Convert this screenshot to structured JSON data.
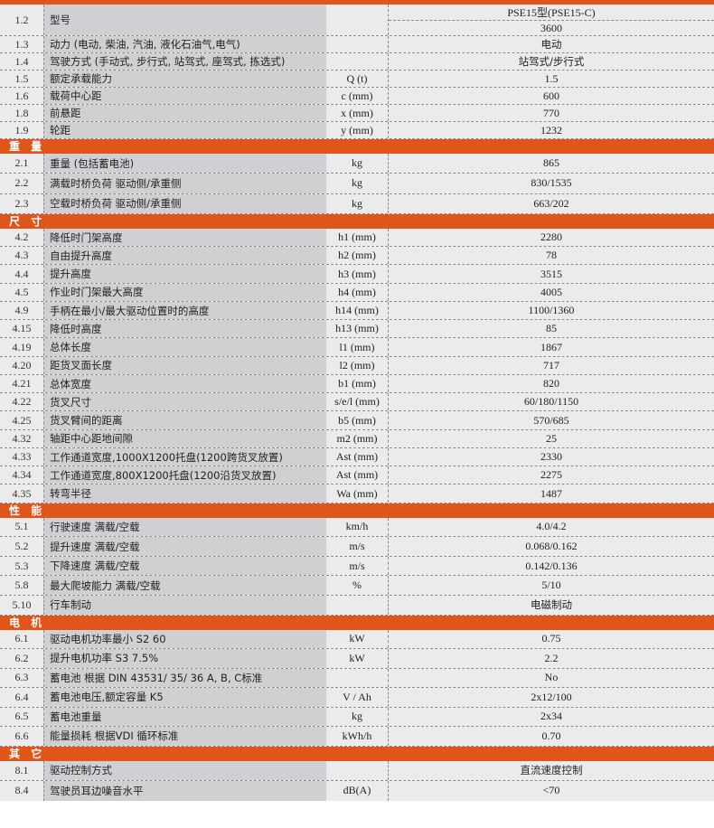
{
  "colors": {
    "accent": "#e0561a",
    "label_bg": "#d0d0d2",
    "cell_bg": "#ebebeb"
  },
  "sections": [
    {
      "title": "",
      "row_h": 19,
      "rows": [
        {
          "no": "1.2",
          "name": "型号",
          "unit": "",
          "values": [
            "PSE15型(PSE15-C)",
            "3600"
          ]
        },
        {
          "no": "1.3",
          "name": "动力 (电动, 柴油, 汽油, 液化石油气,电气)",
          "unit": "",
          "value": "电动"
        },
        {
          "no": "1.4",
          "name": "驾驶方式 (手动式, 步行式, 站驾式, 座驾式, 拣选式)",
          "unit": "",
          "value": "站驾式/步行式"
        },
        {
          "no": "1.5",
          "name": "额定承载能力",
          "unit": "Q (t)",
          "value": "1.5"
        },
        {
          "no": "1.6",
          "name": "载荷中心距",
          "unit": "c (mm)",
          "value": "600"
        },
        {
          "no": "1.8",
          "name": "前悬距",
          "unit": "x (mm)",
          "value": "770"
        },
        {
          "no": "1.9",
          "name": "轮距",
          "unit": "y (mm)",
          "value": "1232"
        }
      ]
    },
    {
      "title": "重 量",
      "row_h": 22.3,
      "rows": [
        {
          "no": "2.1",
          "name": "重量 (包括蓄电池)",
          "unit": "kg",
          "value": "865"
        },
        {
          "no": "2.2",
          "name": "满载时桥负荷  驱动侧/承重侧",
          "unit": "kg",
          "value": "830/1535"
        },
        {
          "no": "2.3",
          "name": "空载时桥负荷  驱动侧/承重侧",
          "unit": "kg",
          "value": "663/202"
        }
      ]
    },
    {
      "title": "尺 寸",
      "row_h": 20.25,
      "rows": [
        {
          "no": "4.2",
          "name": "降低时门架高度",
          "unit": "h1 (mm)",
          "value": "2280"
        },
        {
          "no": "4.3",
          "name": "自由提升高度",
          "unit": "h2 (mm)",
          "value": "78"
        },
        {
          "no": "4.4",
          "name": "提升高度",
          "unit": "h3 (mm)",
          "value": "3515"
        },
        {
          "no": "4.5",
          "name": "作业时门架最大高度",
          "unit": "h4 (mm)",
          "value": "4005"
        },
        {
          "no": "4.9",
          "name": "手柄在最小/最大驱动位置时的高度",
          "unit": "h14 (mm)",
          "value": "1100/1360"
        },
        {
          "no": "4.15",
          "name": "降低时高度",
          "unit": "h13 (mm)",
          "value": "85"
        },
        {
          "no": "4.19",
          "name": "总体长度",
          "unit": "l1 (mm)",
          "value": "1867"
        },
        {
          "no": "4.20",
          "name": "距货叉面长度",
          "unit": "l2 (mm)",
          "value": "717"
        },
        {
          "no": "4.21",
          "name": "总体宽度",
          "unit": "b1 (mm)",
          "value": "820"
        },
        {
          "no": "4.22",
          "name": "货叉尺寸",
          "unit": "s/e/l (mm)",
          "value": "60/180/1150"
        },
        {
          "no": "4.25",
          "name": "货叉臂间的距离",
          "unit": "b5 (mm)",
          "value": "570/685"
        },
        {
          "no": "4.32",
          "name": "轴距中心距地间隙",
          "unit": "m2 (mm)",
          "value": "25"
        },
        {
          "no": "4.33",
          "name": "工作通道宽度,1000X1200托盘(1200跨货叉放置)",
          "unit": "Ast (mm)",
          "value": "2330"
        },
        {
          "no": "4.34",
          "name": "工作通道宽度,800X1200托盘(1200沿货叉放置)",
          "unit": "Ast (mm)",
          "value": "2275"
        },
        {
          "no": "4.35",
          "name": "转弯半径",
          "unit": "Wa (mm)",
          "value": "1487"
        }
      ]
    },
    {
      "title": "性 能",
      "row_h": 21.6,
      "rows": [
        {
          "no": "5.1",
          "name": "行驶速度  满载/空载",
          "unit": "km/h",
          "value": "4.0/4.2"
        },
        {
          "no": "5.2",
          "name": "提升速度  满载/空载",
          "unit": "m/s",
          "value": "0.068/0.162"
        },
        {
          "no": "5.3",
          "name": "下降速度  满载/空载",
          "unit": "m/s",
          "value": "0.142/0.136"
        },
        {
          "no": "5.8",
          "name": "最大爬坡能力  满载/空载",
          "unit": "%",
          "value": "5/10"
        },
        {
          "no": "5.10",
          "name": "行车制动",
          "unit": "",
          "value": "电磁制动"
        }
      ]
    },
    {
      "title": "电 机",
      "row_h": 21.5,
      "rows": [
        {
          "no": "6.1",
          "name": "驱动电机功率最小 S2 60",
          "unit": "kW",
          "value": "0.75"
        },
        {
          "no": "6.2",
          "name": "提升电机功率 S3  7.5%",
          "unit": "kW",
          "value": "2.2"
        },
        {
          "no": "6.3",
          "name": "蓄电池 根据 DIN 43531/ 35/ 36 A, B, C标准",
          "unit": "",
          "value": "No"
        },
        {
          "no": "6.4",
          "name": "蓄电池电压,额定容量 K5",
          "unit": "V / Ah",
          "value": "2x12/100"
        },
        {
          "no": "6.5",
          "name": "蓄电池重量",
          "unit": "kg",
          "value": "2x34"
        },
        {
          "no": "6.6",
          "name": "能量损耗  根据VDI 循环标准",
          "unit": "kWh/h",
          "value": "0.70"
        }
      ]
    },
    {
      "title": "其 它",
      "row_h": 22,
      "rows": [
        {
          "no": "8.1",
          "name": "驱动控制方式",
          "unit": "",
          "value": "直流速度控制"
        },
        {
          "no": "8.4",
          "name": "驾驶员耳边噪音水平",
          "unit": "dB(A)",
          "value": "<70"
        }
      ]
    }
  ]
}
